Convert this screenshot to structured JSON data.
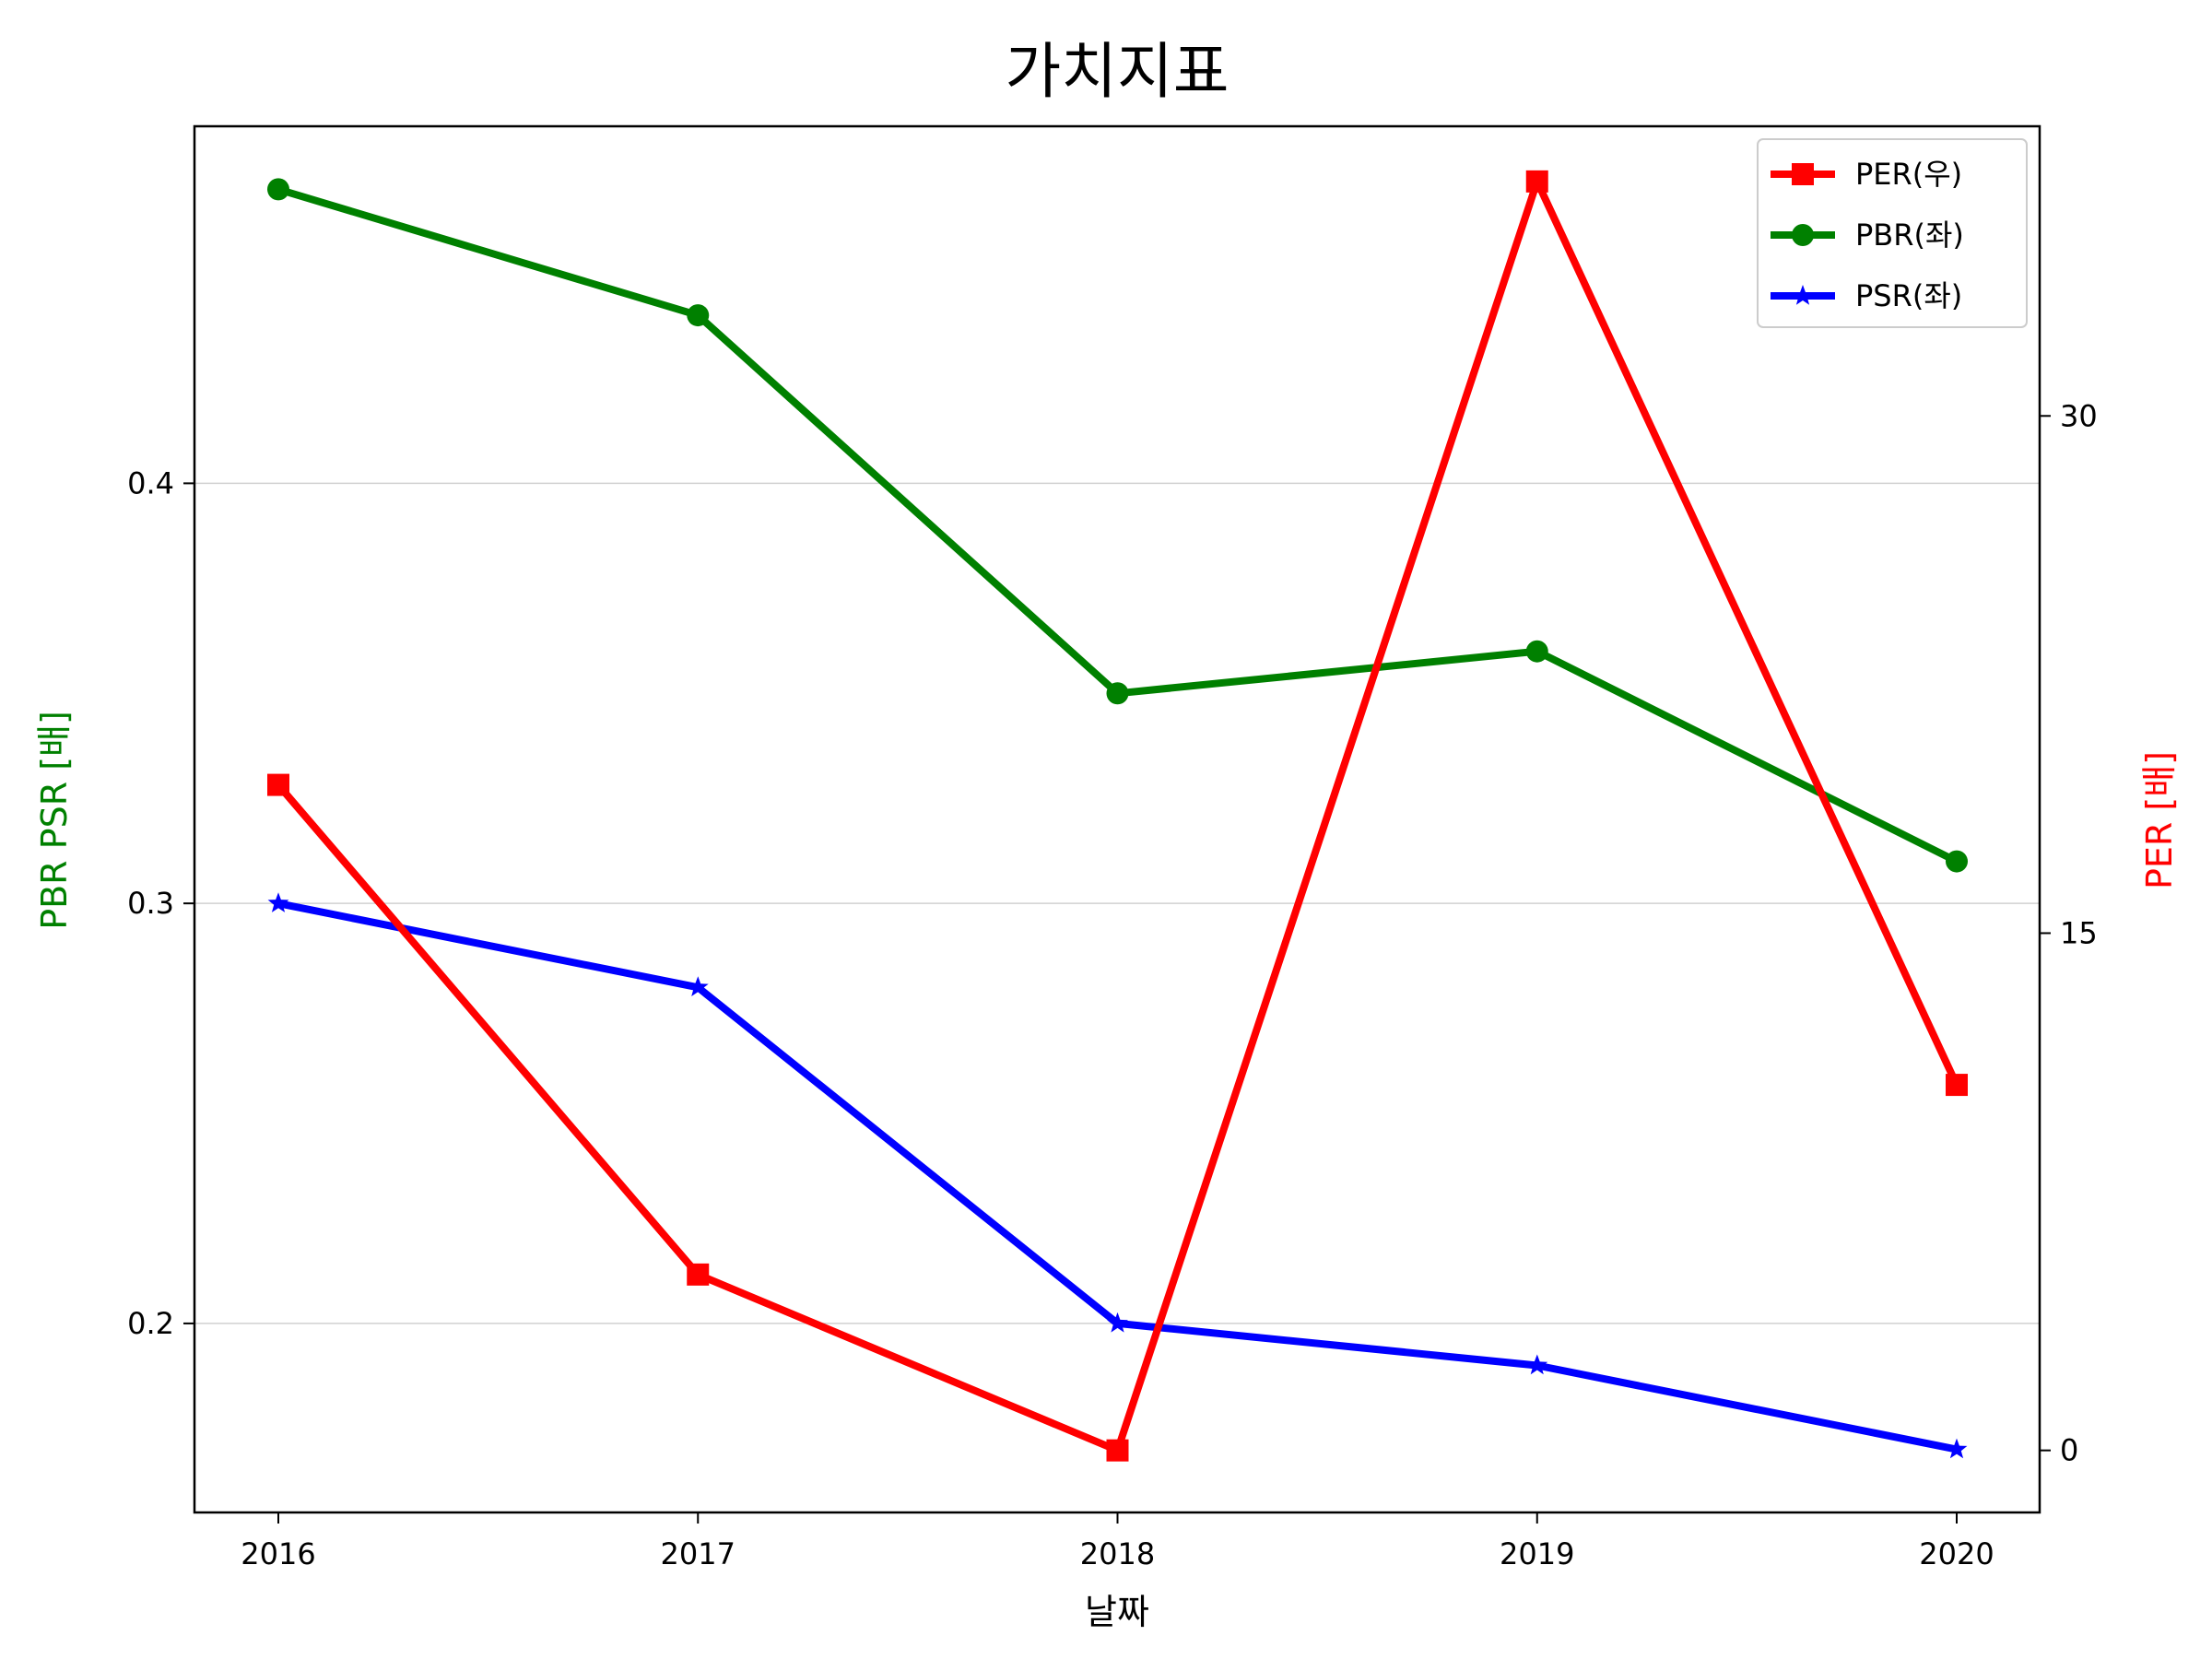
{
  "chart_data": {
    "type": "line",
    "title": "가치지표",
    "xlabel": "날짜",
    "ylabel_left": "PBR PSR [배]",
    "ylabel_right": "PER [배]",
    "categories": [
      "2016",
      "2017",
      "2018",
      "2019",
      "2020"
    ],
    "left_axis": {
      "ylim": [
        0.155,
        0.485
      ],
      "ticks": [
        0.2,
        0.3,
        0.4
      ],
      "tick_labels": [
        "0.2",
        "0.3",
        "0.4"
      ],
      "color": "#008000"
    },
    "right_axis": {
      "ylim": [
        -1.8,
        38.4
      ],
      "ticks": [
        0,
        15,
        30
      ],
      "tick_labels": [
        "0",
        "15",
        "30"
      ],
      "color": "#ff0000"
    },
    "series": [
      {
        "name": "PER(우)",
        "axis": "right",
        "color": "#ff0000",
        "marker": "square",
        "values": [
          19.3,
          5.1,
          0.0,
          36.8,
          10.6
        ]
      },
      {
        "name": "PBR(좌)",
        "axis": "left",
        "color": "#008000",
        "marker": "circle",
        "values": [
          0.47,
          0.44,
          0.35,
          0.36,
          0.31
        ]
      },
      {
        "name": "PSR(좌)",
        "axis": "left",
        "color": "#0000ff",
        "marker": "star",
        "values": [
          0.3,
          0.28,
          0.2,
          0.19,
          0.17
        ]
      }
    ],
    "grid": "horizontal, left axis",
    "legend_position": "top-right"
  }
}
